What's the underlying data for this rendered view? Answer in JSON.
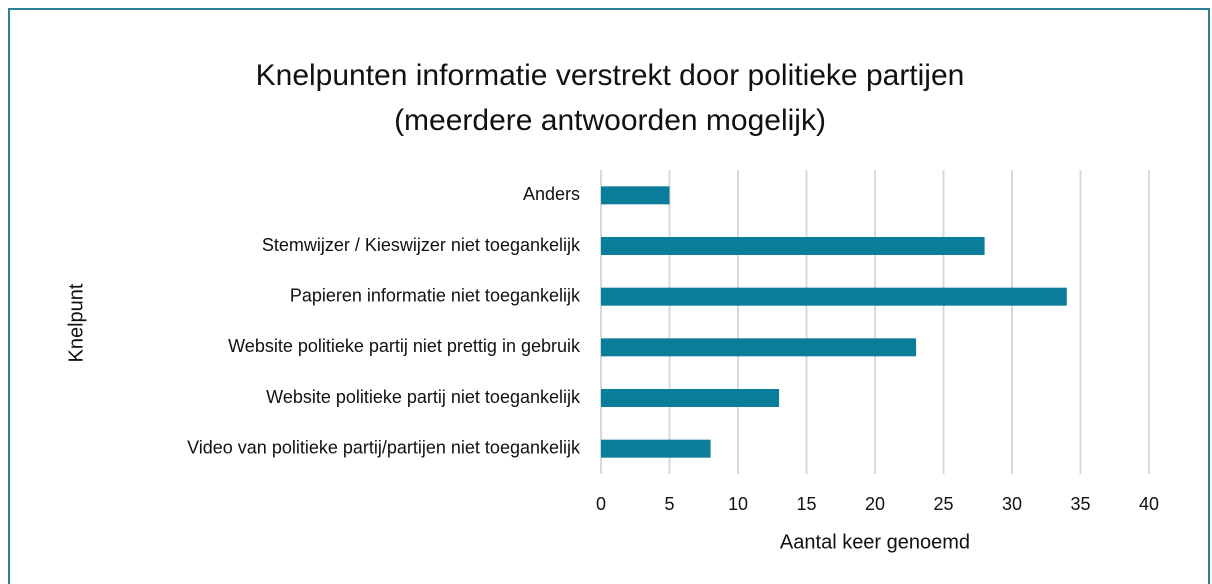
{
  "chart_data": {
    "type": "hbar",
    "title": "Knelpunten informatie verstrekt door politieke partijen",
    "subtitle": "(meerdere antwoorden mogelijk)",
    "categories": [
      "Anders",
      "Stemwijzer / Kieswijzer niet toegankelijk",
      "Papieren informatie niet toegankelijk",
      "Website politieke partij niet prettig in gebruik",
      "Website politieke partij niet toegankelijk",
      "Video van politieke partij/partijen niet toegankelijk"
    ],
    "values": [
      5,
      28,
      34,
      23,
      13,
      8
    ],
    "color": "#0a7d9b",
    "xlim": [
      0,
      40
    ],
    "xticks": [
      0,
      5,
      10,
      15,
      20,
      25,
      30,
      35,
      40
    ],
    "xlabel": "Aantal keer genoemd",
    "ylabel": "Knelpunt",
    "grid": true
  }
}
